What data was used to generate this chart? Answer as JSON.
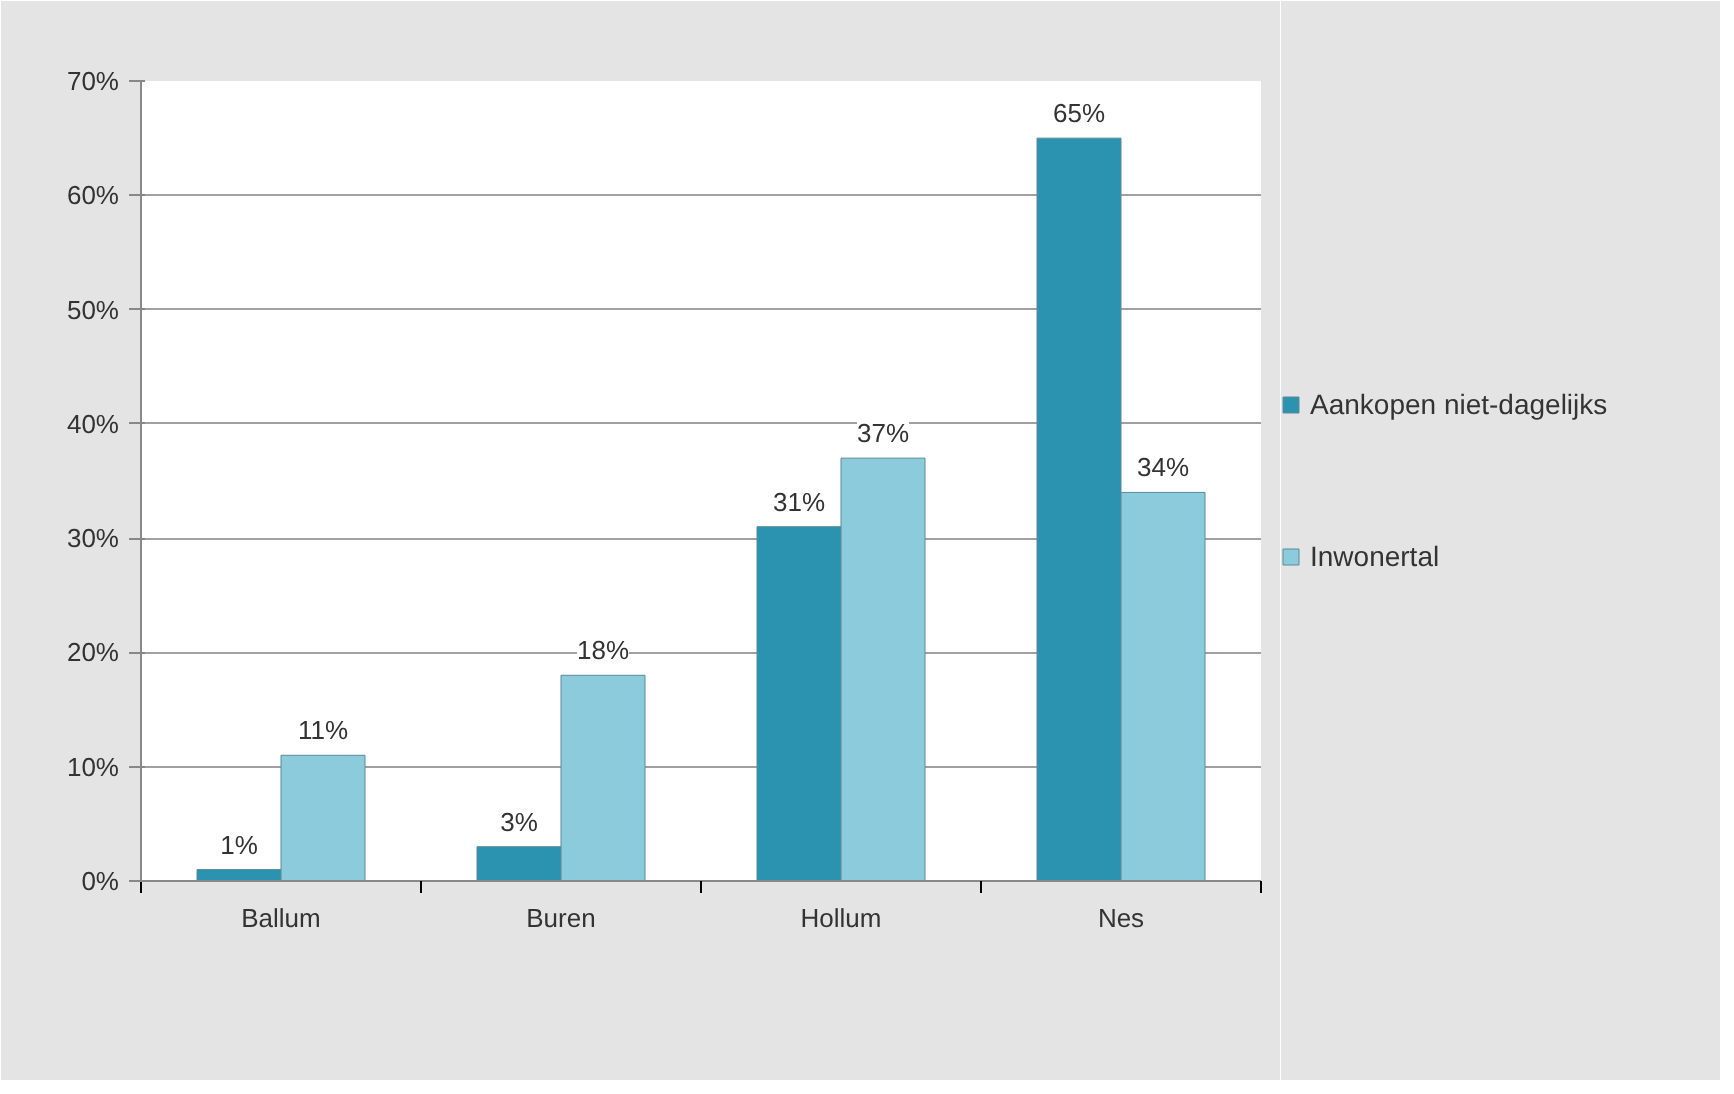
{
  "chart_data": {
    "type": "bar",
    "categories": [
      "Ballum",
      "Buren",
      "Hollum",
      "Nes"
    ],
    "series": [
      {
        "name": "Aankopen niet-dagelijks",
        "color": "#2b93b0",
        "values": [
          1,
          3,
          31,
          65
        ],
        "value_labels": [
          "1%",
          "3%",
          "31%",
          "65%"
        ]
      },
      {
        "name": "Inwonertal",
        "color": "#8ccbdc",
        "values": [
          11,
          18,
          37,
          34
        ],
        "value_labels": [
          "11%",
          "18%",
          "37%",
          "34%"
        ]
      }
    ],
    "ylim": [
      0,
      70
    ],
    "yticks": [
      {
        "value": 0,
        "label": "0%"
      },
      {
        "value": 10,
        "label": "10%"
      },
      {
        "value": 20,
        "label": "20%"
      },
      {
        "value": 30,
        "label": "30%"
      },
      {
        "value": 40,
        "label": "40%"
      },
      {
        "value": 50,
        "label": "50%"
      },
      {
        "value": 60,
        "label": "60%"
      },
      {
        "value": 70,
        "label": "70%"
      }
    ],
    "grid": "y",
    "legend": "right"
  }
}
